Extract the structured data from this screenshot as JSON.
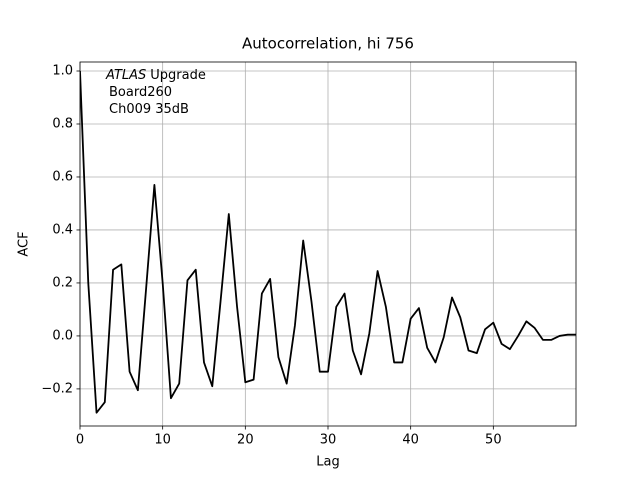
{
  "chart_data": {
    "type": "line",
    "title": "Autocorrelation, hi 756",
    "xlabel": "Lag",
    "ylabel": "ACF",
    "annotation": {
      "emphasis": "ATLAS",
      "lines": [
        "Upgrade",
        "Board260",
        "Ch009 35dB"
      ]
    },
    "x": [
      0,
      1,
      2,
      3,
      4,
      5,
      6,
      7,
      8,
      9,
      10,
      11,
      12,
      13,
      14,
      15,
      16,
      17,
      18,
      19,
      20,
      21,
      22,
      23,
      24,
      25,
      26,
      27,
      28,
      29,
      30,
      31,
      32,
      33,
      34,
      35,
      36,
      37,
      38,
      39,
      40,
      41,
      42,
      43,
      44,
      45,
      46,
      47,
      48,
      49,
      50,
      51,
      52,
      53,
      54,
      55,
      56,
      57,
      58,
      59,
      60
    ],
    "values": [
      1.0,
      0.2,
      -0.29,
      -0.25,
      0.25,
      0.27,
      -0.135,
      -0.205,
      0.18,
      0.57,
      0.2,
      -0.235,
      -0.18,
      0.21,
      0.25,
      -0.1,
      -0.19,
      0.13,
      0.46,
      0.11,
      -0.175,
      -0.165,
      0.16,
      0.215,
      -0.08,
      -0.18,
      0.04,
      0.36,
      0.13,
      -0.135,
      -0.135,
      0.11,
      0.16,
      -0.055,
      -0.145,
      0.01,
      0.245,
      0.11,
      -0.1,
      -0.1,
      0.065,
      0.105,
      -0.045,
      -0.1,
      -0.005,
      0.145,
      0.07,
      -0.055,
      -0.065,
      0.025,
      0.05,
      -0.03,
      -0.05,
      0.0,
      0.055,
      0.03,
      -0.015,
      -0.015,
      0.0,
      0.005,
      0.005
    ],
    "color": "#000000",
    "xlim": [
      0,
      60
    ],
    "ylim": [
      -0.34,
      1.034
    ],
    "xticks": [
      0,
      10,
      20,
      30,
      40,
      50
    ],
    "yticks": [
      {
        "value": -0.2,
        "label": "−0.2"
      },
      {
        "value": 0,
        "label": "0.0"
      },
      {
        "value": 0.2,
        "label": "0.2"
      },
      {
        "value": 0.4,
        "label": "0.4"
      },
      {
        "value": 0.6,
        "label": "0.6"
      },
      {
        "value": 0.8,
        "label": "0.8"
      },
      {
        "value": 1.0,
        "label": "1.0"
      }
    ],
    "grid": true
  }
}
